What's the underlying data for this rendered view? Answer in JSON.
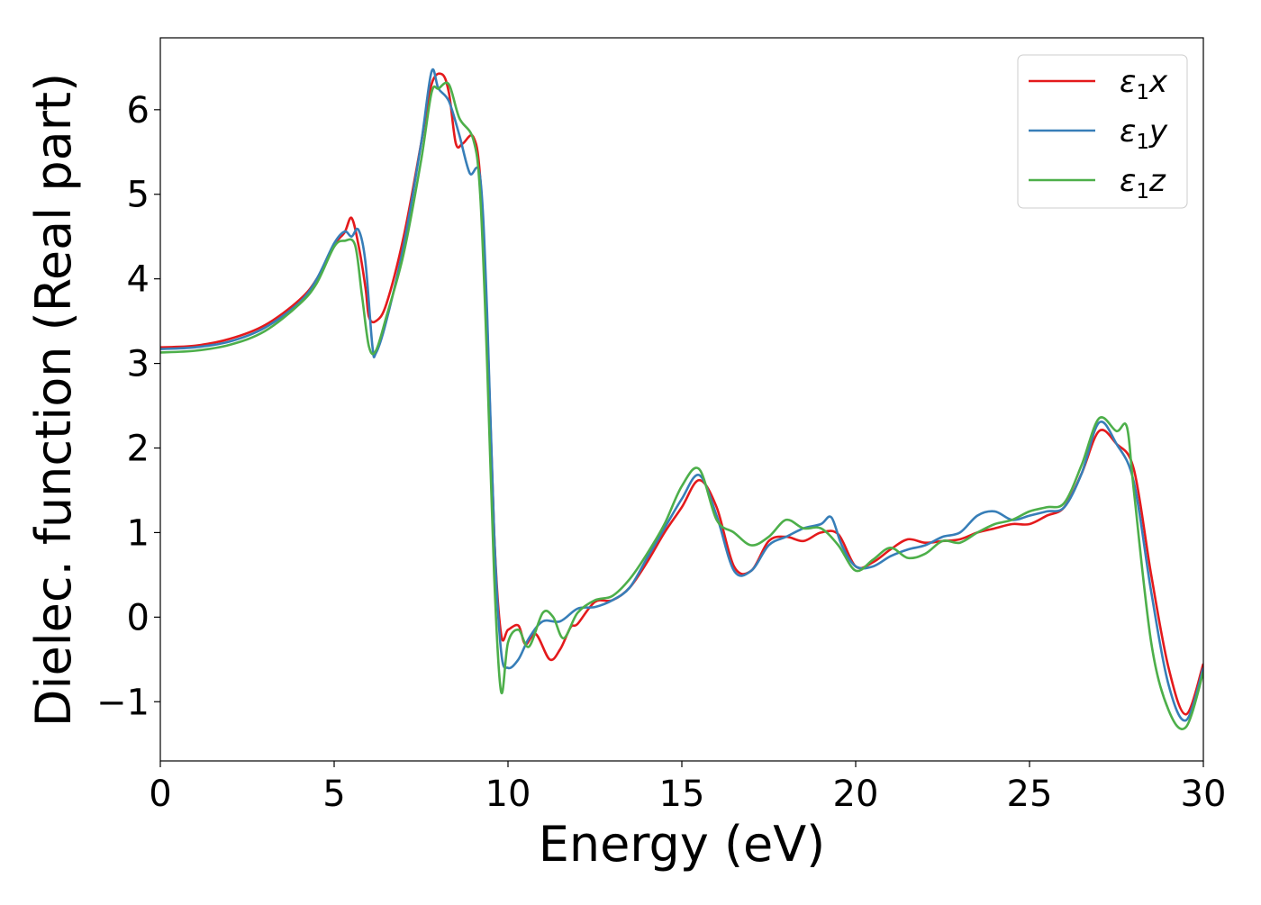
{
  "chart_data": {
    "type": "line",
    "title": "",
    "xlabel": "Energy (eV)",
    "ylabel": "Dielec. function (Real part)",
    "xlim": [
      0,
      30
    ],
    "ylim": [
      -1.7,
      6.85
    ],
    "xticks": [
      0,
      5,
      10,
      15,
      20,
      25,
      30
    ],
    "xtick_labels": [
      "0",
      "5",
      "10",
      "15",
      "20",
      "25",
      "30"
    ],
    "yticks": [
      -1,
      0,
      1,
      2,
      3,
      4,
      5,
      6
    ],
    "ytick_labels": [
      "−1",
      "0",
      "1",
      "2",
      "3",
      "4",
      "5",
      "6"
    ],
    "grid": false,
    "legend_position": "top-right",
    "series": [
      {
        "name": "ε₁x",
        "legend_base": "ε",
        "legend_sub": "1",
        "legend_tail": "x",
        "color": "#e41a1c",
        "points": [
          [
            0,
            3.19
          ],
          [
            1,
            3.21
          ],
          [
            2,
            3.29
          ],
          [
            3,
            3.45
          ],
          [
            4,
            3.75
          ],
          [
            4.5,
            4.0
          ],
          [
            5,
            4.4
          ],
          [
            5.3,
            4.55
          ],
          [
            5.5,
            4.72
          ],
          [
            5.7,
            4.4
          ],
          [
            5.9,
            3.9
          ],
          [
            6.0,
            3.55
          ],
          [
            6.2,
            3.5
          ],
          [
            6.5,
            3.7
          ],
          [
            7.0,
            4.5
          ],
          [
            7.5,
            5.6
          ],
          [
            7.8,
            6.3
          ],
          [
            8.1,
            6.42
          ],
          [
            8.3,
            6.2
          ],
          [
            8.5,
            5.6
          ],
          [
            8.7,
            5.6
          ],
          [
            9.0,
            5.68
          ],
          [
            9.2,
            5.2
          ],
          [
            9.4,
            3.5
          ],
          [
            9.6,
            1.0
          ],
          [
            9.8,
            -0.2
          ],
          [
            10.0,
            -0.15
          ],
          [
            10.3,
            -0.1
          ],
          [
            10.5,
            -0.32
          ],
          [
            10.8,
            -0.2
          ],
          [
            11.2,
            -0.5
          ],
          [
            11.5,
            -0.38
          ],
          [
            11.8,
            -0.12
          ],
          [
            12.0,
            -0.08
          ],
          [
            12.5,
            0.18
          ],
          [
            13.0,
            0.2
          ],
          [
            13.5,
            0.35
          ],
          [
            14.0,
            0.65
          ],
          [
            14.5,
            1.0
          ],
          [
            15.0,
            1.3
          ],
          [
            15.5,
            1.62
          ],
          [
            16.0,
            1.3
          ],
          [
            16.5,
            0.6
          ],
          [
            17.0,
            0.55
          ],
          [
            17.5,
            0.9
          ],
          [
            18.0,
            0.95
          ],
          [
            18.5,
            0.9
          ],
          [
            19.0,
            1.0
          ],
          [
            19.5,
            0.98
          ],
          [
            20.0,
            0.6
          ],
          [
            20.5,
            0.65
          ],
          [
            21.0,
            0.8
          ],
          [
            21.5,
            0.92
          ],
          [
            22.0,
            0.88
          ],
          [
            22.5,
            0.9
          ],
          [
            23.0,
            0.92
          ],
          [
            23.5,
            1.0
          ],
          [
            24.0,
            1.05
          ],
          [
            24.5,
            1.1
          ],
          [
            25.0,
            1.1
          ],
          [
            25.5,
            1.2
          ],
          [
            26.0,
            1.3
          ],
          [
            26.5,
            1.7
          ],
          [
            27.0,
            2.2
          ],
          [
            27.5,
            2.05
          ],
          [
            28.0,
            1.75
          ],
          [
            28.5,
            0.5
          ],
          [
            29.0,
            -0.6
          ],
          [
            29.5,
            -1.15
          ],
          [
            30.0,
            -0.55
          ]
        ]
      },
      {
        "name": "ε₁y",
        "legend_base": "ε",
        "legend_sub": "1",
        "legend_tail": "y",
        "color": "#377eb8",
        "points": [
          [
            0,
            3.17
          ],
          [
            1,
            3.19
          ],
          [
            2,
            3.26
          ],
          [
            3,
            3.42
          ],
          [
            4,
            3.72
          ],
          [
            4.5,
            4.0
          ],
          [
            5,
            4.42
          ],
          [
            5.3,
            4.56
          ],
          [
            5.5,
            4.5
          ],
          [
            5.7,
            4.58
          ],
          [
            5.9,
            4.2
          ],
          [
            6.1,
            3.2
          ],
          [
            6.2,
            3.12
          ],
          [
            6.5,
            3.5
          ],
          [
            7.0,
            4.4
          ],
          [
            7.5,
            5.6
          ],
          [
            7.8,
            6.45
          ],
          [
            8.0,
            6.25
          ],
          [
            8.3,
            6.1
          ],
          [
            8.6,
            5.7
          ],
          [
            8.9,
            5.25
          ],
          [
            9.2,
            5.2
          ],
          [
            9.4,
            3.6
          ],
          [
            9.6,
            1.0
          ],
          [
            9.8,
            -0.4
          ],
          [
            10.0,
            -0.6
          ],
          [
            10.3,
            -0.5
          ],
          [
            10.6,
            -0.25
          ],
          [
            11.0,
            -0.05
          ],
          [
            11.5,
            -0.05
          ],
          [
            12.0,
            0.1
          ],
          [
            12.5,
            0.12
          ],
          [
            13.0,
            0.2
          ],
          [
            13.5,
            0.35
          ],
          [
            14.0,
            0.7
          ],
          [
            14.5,
            1.05
          ],
          [
            15.0,
            1.4
          ],
          [
            15.5,
            1.68
          ],
          [
            16.0,
            1.2
          ],
          [
            16.5,
            0.55
          ],
          [
            17.0,
            0.55
          ],
          [
            17.5,
            0.85
          ],
          [
            18.0,
            0.95
          ],
          [
            18.5,
            1.05
          ],
          [
            19.0,
            1.1
          ],
          [
            19.3,
            1.18
          ],
          [
            19.6,
            0.85
          ],
          [
            20.0,
            0.6
          ],
          [
            20.5,
            0.6
          ],
          [
            21.0,
            0.72
          ],
          [
            21.5,
            0.8
          ],
          [
            22.0,
            0.85
          ],
          [
            22.5,
            0.95
          ],
          [
            23.0,
            1.0
          ],
          [
            23.5,
            1.2
          ],
          [
            24.0,
            1.25
          ],
          [
            24.5,
            1.15
          ],
          [
            25.0,
            1.2
          ],
          [
            25.5,
            1.25
          ],
          [
            26.0,
            1.3
          ],
          [
            26.5,
            1.7
          ],
          [
            27.0,
            2.3
          ],
          [
            27.5,
            2.05
          ],
          [
            28.0,
            1.6
          ],
          [
            28.5,
            0.3
          ],
          [
            29.0,
            -0.8
          ],
          [
            29.5,
            -1.22
          ],
          [
            30.0,
            -0.6
          ]
        ]
      },
      {
        "name": "ε₁z",
        "legend_base": "ε",
        "legend_sub": "1",
        "legend_tail": "z",
        "color": "#4daf4a",
        "points": [
          [
            0,
            3.13
          ],
          [
            1,
            3.15
          ],
          [
            2,
            3.22
          ],
          [
            3,
            3.38
          ],
          [
            4,
            3.7
          ],
          [
            4.5,
            3.95
          ],
          [
            5,
            4.38
          ],
          [
            5.3,
            4.45
          ],
          [
            5.6,
            4.4
          ],
          [
            5.8,
            3.8
          ],
          [
            6.0,
            3.2
          ],
          [
            6.2,
            3.15
          ],
          [
            6.5,
            3.55
          ],
          [
            7.0,
            4.3
          ],
          [
            7.5,
            5.4
          ],
          [
            7.8,
            6.2
          ],
          [
            8.0,
            6.25
          ],
          [
            8.3,
            6.3
          ],
          [
            8.6,
            5.9
          ],
          [
            9.0,
            5.65
          ],
          [
            9.2,
            5.0
          ],
          [
            9.4,
            3.0
          ],
          [
            9.6,
            0.5
          ],
          [
            9.8,
            -0.88
          ],
          [
            10.0,
            -0.3
          ],
          [
            10.3,
            -0.15
          ],
          [
            10.6,
            -0.35
          ],
          [
            11.0,
            0.05
          ],
          [
            11.3,
            0.0
          ],
          [
            11.6,
            -0.25
          ],
          [
            12.0,
            0.05
          ],
          [
            12.5,
            0.2
          ],
          [
            13.0,
            0.25
          ],
          [
            13.5,
            0.45
          ],
          [
            14.0,
            0.75
          ],
          [
            14.5,
            1.1
          ],
          [
            15.0,
            1.55
          ],
          [
            15.5,
            1.75
          ],
          [
            16.0,
            1.15
          ],
          [
            16.5,
            1.0
          ],
          [
            17.0,
            0.85
          ],
          [
            17.5,
            0.95
          ],
          [
            18.0,
            1.15
          ],
          [
            18.5,
            1.05
          ],
          [
            19.0,
            1.05
          ],
          [
            19.5,
            0.85
          ],
          [
            20.0,
            0.55
          ],
          [
            20.5,
            0.68
          ],
          [
            21.0,
            0.82
          ],
          [
            21.5,
            0.7
          ],
          [
            22.0,
            0.75
          ],
          [
            22.5,
            0.9
          ],
          [
            23.0,
            0.88
          ],
          [
            23.5,
            1.0
          ],
          [
            24.0,
            1.1
          ],
          [
            24.5,
            1.15
          ],
          [
            25.0,
            1.25
          ],
          [
            25.5,
            1.3
          ],
          [
            26.0,
            1.35
          ],
          [
            26.5,
            1.8
          ],
          [
            27.0,
            2.35
          ],
          [
            27.5,
            2.2
          ],
          [
            27.8,
            2.25
          ],
          [
            28.0,
            1.5
          ],
          [
            28.5,
            -0.3
          ],
          [
            29.0,
            -1.1
          ],
          [
            29.5,
            -1.3
          ],
          [
            30.0,
            -0.65
          ]
        ]
      }
    ]
  }
}
